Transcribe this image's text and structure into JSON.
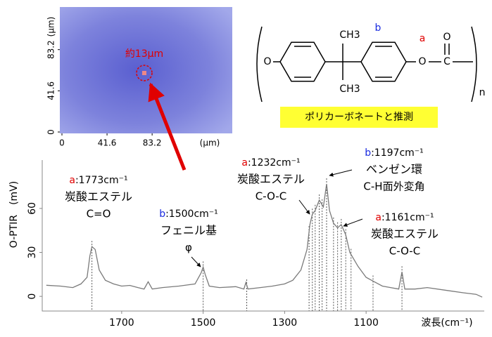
{
  "micrograph": {
    "label": "約13μm",
    "xticks": [
      0,
      41.6,
      83.2
    ],
    "yticks": [
      0,
      41.6,
      83.2
    ],
    "x_unit": "(μm)",
    "y_unit": "(μm)"
  },
  "structure": {
    "left_oxygen": "O",
    "methyl_top": "CH3",
    "methyl_bottom": "CH3",
    "ring_letter": "b",
    "ester_letter": "a",
    "ester_oxygen": "O",
    "carbonyl_carbon": "C",
    "carbonyl_oxygen": "O",
    "repeat": "n",
    "note": "ポリカーボネートと推測"
  },
  "chart_data": {
    "type": "line",
    "x_label": "波長(cm⁻¹)",
    "y_label": "O-PTIR　(mV)",
    "xlim": [
      1895,
      810
    ],
    "xticks": [
      1700,
      1500,
      1300,
      1100
    ],
    "ylim": [
      -10,
      93
    ],
    "yticks": [
      0,
      30,
      60
    ],
    "series": [
      {
        "color": "#7a7a7a",
        "x": [
          1885,
          1850,
          1820,
          1800,
          1785,
          1778,
          1773,
          1765,
          1755,
          1740,
          1720,
          1700,
          1680,
          1660,
          1645,
          1635,
          1625,
          1600,
          1560,
          1520,
          1505,
          1500,
          1495,
          1485,
          1460,
          1420,
          1400,
          1395,
          1390,
          1360,
          1330,
          1300,
          1280,
          1260,
          1245,
          1238,
          1232,
          1225,
          1215,
          1205,
          1197,
          1190,
          1180,
          1170,
          1161,
          1150,
          1140,
          1120,
          1100,
          1080,
          1060,
          1040,
          1020,
          1012,
          1005,
          980,
          950,
          900,
          860,
          830,
          815
        ],
        "values": [
          7.6,
          7,
          6,
          8.5,
          13,
          27.6,
          34,
          32,
          18,
          11,
          8.5,
          7,
          7.5,
          6,
          5,
          10,
          5,
          6,
          7,
          8.5,
          16,
          20,
          15,
          7,
          6,
          6.6,
          5,
          9.5,
          5,
          6,
          7,
          8.5,
          11,
          18,
          32,
          49,
          56,
          58.6,
          65.7,
          61,
          76.7,
          58.6,
          50,
          46.7,
          49,
          42,
          30,
          20.5,
          13,
          10,
          7,
          6,
          5,
          16.7,
          5,
          5,
          6,
          4,
          2.4,
          1.4,
          -0.5
        ]
      }
    ],
    "peak_lines": [
      1773,
      1500,
      1393,
      1240,
      1232,
      1225,
      1215,
      1208,
      1197,
      1180,
      1170,
      1161,
      1150,
      1137,
      1083,
      1012
    ],
    "annotations": [
      {
        "letter": "a",
        "wavenumber": ":1773cm⁻¹",
        "group": "炭酸エステル",
        "bond": "C=O"
      },
      {
        "letter": "b",
        "wavenumber": ":1500cm⁻¹",
        "group": "フェニル基",
        "bond": "φ"
      },
      {
        "letter": "a",
        "wavenumber": ":1232cm⁻¹",
        "group": "炭酸エステル",
        "bond": "C-O-C"
      },
      {
        "letter": "b",
        "wavenumber": ":1197cm⁻¹",
        "group": "ベンゼン環",
        "bond": "C-H面外変角"
      },
      {
        "letter": "a",
        "wavenumber": ":1161cm⁻¹",
        "group": "炭酸エステル",
        "bond": "C-O-C"
      }
    ]
  }
}
